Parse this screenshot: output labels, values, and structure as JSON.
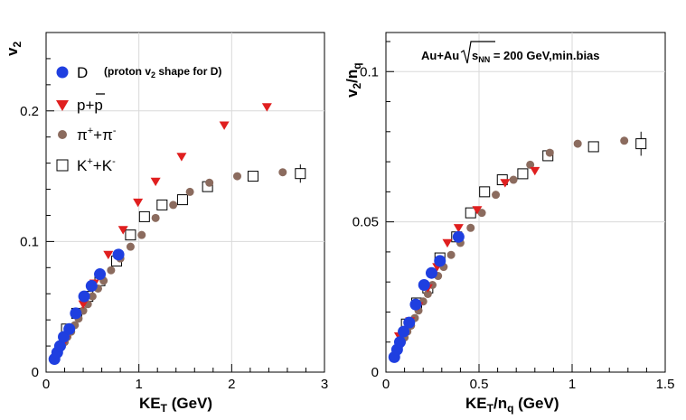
{
  "chart_data": [
    {
      "type": "scatter",
      "name": "left-panel",
      "xlabel_main": "KE",
      "xlabel_sub": "T",
      "xlabel_rest": " (GeV)",
      "ylabel_main": "v",
      "ylabel_sub": "2",
      "xlim": [
        0,
        3
      ],
      "ylim": [
        0,
        0.26
      ],
      "xticks": [
        0,
        1,
        2,
        3
      ],
      "xtick_labels": [
        "0",
        "1",
        "2",
        "3"
      ],
      "yticks": [
        0,
        0.1,
        0.2
      ],
      "ytick_labels": [
        "0",
        "0.1",
        "0.2"
      ],
      "legend": {
        "note": "(proton v",
        "note_sub": "2",
        "note_rest": " shape for D)",
        "entries": [
          {
            "key": "D",
            "label": "D"
          },
          {
            "key": "p",
            "label": "p+p"
          },
          {
            "key": "pi",
            "label_main": "π",
            "label_sup1": "+",
            "label_mid": "+π",
            "label_sup2": "-"
          },
          {
            "key": "K",
            "label_main": "K",
            "label_sup1": "+",
            "label_mid": "+K",
            "label_sup2": "-"
          }
        ]
      },
      "series": [
        {
          "name": "D",
          "marker": "circle",
          "color": "#1f3fe0",
          "x": [
            0.09,
            0.12,
            0.15,
            0.19,
            0.25,
            0.32,
            0.41,
            0.49,
            0.58,
            0.78
          ],
          "y": [
            0.01,
            0.015,
            0.02,
            0.027,
            0.033,
            0.045,
            0.058,
            0.066,
            0.075,
            0.09
          ]
        },
        {
          "name": "p+p",
          "marker": "triangle-down",
          "color": "#e01f1f",
          "x": [
            0.21,
            0.4,
            0.52,
            0.67,
            0.83,
            0.99,
            1.18,
            1.46,
            1.92,
            2.38
          ],
          "y": [
            0.025,
            0.052,
            0.068,
            0.09,
            0.109,
            0.13,
            0.146,
            0.165,
            0.189,
            0.203
          ]
        },
        {
          "name": "π++π-",
          "marker": "circle",
          "color": "#8b6b5e",
          "x": [
            0.08,
            0.1,
            0.12,
            0.14,
            0.17,
            0.2,
            0.23,
            0.27,
            0.31,
            0.35,
            0.4,
            0.45,
            0.5,
            0.56,
            0.62,
            0.7,
            0.8,
            0.91,
            1.03,
            1.18,
            1.37,
            1.55,
            1.76,
            2.06,
            2.55
          ],
          "y": [
            0.01,
            0.012,
            0.014,
            0.017,
            0.02,
            0.023,
            0.027,
            0.031,
            0.036,
            0.041,
            0.047,
            0.052,
            0.058,
            0.064,
            0.07,
            0.078,
            0.087,
            0.096,
            0.105,
            0.118,
            0.128,
            0.138,
            0.145,
            0.15,
            0.153
          ]
        },
        {
          "name": "K++K-",
          "marker": "square-open",
          "color": "#000000",
          "x": [
            0.22,
            0.33,
            0.45,
            0.58,
            0.76,
            0.91,
            1.06,
            1.25,
            1.47,
            1.74,
            2.23,
            2.74
          ],
          "y": [
            0.033,
            0.045,
            0.058,
            0.07,
            0.085,
            0.105,
            0.119,
            0.128,
            0.132,
            0.142,
            0.15,
            0.152
          ],
          "err": [
            0,
            0,
            0,
            0,
            0,
            0,
            0,
            0,
            0,
            0,
            0,
            0.007
          ]
        }
      ]
    },
    {
      "type": "scatter",
      "name": "right-panel",
      "title_prefix": "Au+Au",
      "title_sqrt": "s",
      "title_sub": "NN",
      "title_rest": " = 200 GeV,min.bias",
      "xlabel_main": "KE",
      "xlabel_sub": "T",
      "xlabel_mid": "/n",
      "xlabel_sub2": "q",
      "xlabel_rest": " (GeV)",
      "ylabel_main": "v",
      "ylabel_sub": "2",
      "ylabel_mid": "/n",
      "ylabel_sub2": "q",
      "xlim": [
        0,
        1.5
      ],
      "ylim": [
        0,
        0.113
      ],
      "xticks": [
        0,
        0.5,
        1,
        1.5
      ],
      "xtick_labels": [
        "0",
        "0.5",
        "1",
        "1.5"
      ],
      "yticks": [
        0,
        0.05,
        0.1
      ],
      "ytick_labels": [
        "0",
        "0.05",
        "0.1"
      ],
      "series": [
        {
          "name": "D",
          "marker": "circle",
          "color": "#1f3fe0",
          "x": [
            0.045,
            0.06,
            0.075,
            0.095,
            0.125,
            0.16,
            0.205,
            0.245,
            0.29,
            0.39
          ],
          "y": [
            0.005,
            0.0075,
            0.01,
            0.0135,
            0.0165,
            0.0225,
            0.029,
            0.033,
            0.037,
            0.045
          ]
        },
        {
          "name": "p+p",
          "marker": "triangle-down",
          "color": "#e01f1f",
          "x": [
            0.07,
            0.13,
            0.175,
            0.225,
            0.275,
            0.33,
            0.39,
            0.49,
            0.64,
            0.8
          ],
          "y": [
            0.012,
            0.017,
            0.022,
            0.028,
            0.035,
            0.043,
            0.048,
            0.054,
            0.063,
            0.067
          ]
        },
        {
          "name": "π++π-",
          "marker": "circle",
          "color": "#8b6b5e",
          "x": [
            0.04,
            0.05,
            0.06,
            0.07,
            0.085,
            0.1,
            0.115,
            0.135,
            0.155,
            0.175,
            0.2,
            0.225,
            0.25,
            0.28,
            0.31,
            0.35,
            0.4,
            0.455,
            0.515,
            0.59,
            0.685,
            0.775,
            0.88,
            1.03,
            1.28
          ],
          "y": [
            0.005,
            0.006,
            0.007,
            0.0085,
            0.01,
            0.0115,
            0.0135,
            0.0155,
            0.018,
            0.0205,
            0.0235,
            0.026,
            0.029,
            0.032,
            0.035,
            0.039,
            0.043,
            0.048,
            0.053,
            0.059,
            0.064,
            0.069,
            0.073,
            0.076,
            0.077
          ]
        },
        {
          "name": "K++K-",
          "marker": "square-open",
          "color": "#000000",
          "x": [
            0.11,
            0.165,
            0.225,
            0.29,
            0.38,
            0.455,
            0.53,
            0.625,
            0.735,
            0.87,
            1.115,
            1.37
          ],
          "y": [
            0.016,
            0.023,
            0.028,
            0.038,
            0.045,
            0.053,
            0.06,
            0.064,
            0.066,
            0.072,
            0.075,
            0.076
          ],
          "err": [
            0,
            0,
            0,
            0,
            0,
            0,
            0,
            0,
            0,
            0,
            0,
            0.004
          ]
        }
      ]
    }
  ]
}
